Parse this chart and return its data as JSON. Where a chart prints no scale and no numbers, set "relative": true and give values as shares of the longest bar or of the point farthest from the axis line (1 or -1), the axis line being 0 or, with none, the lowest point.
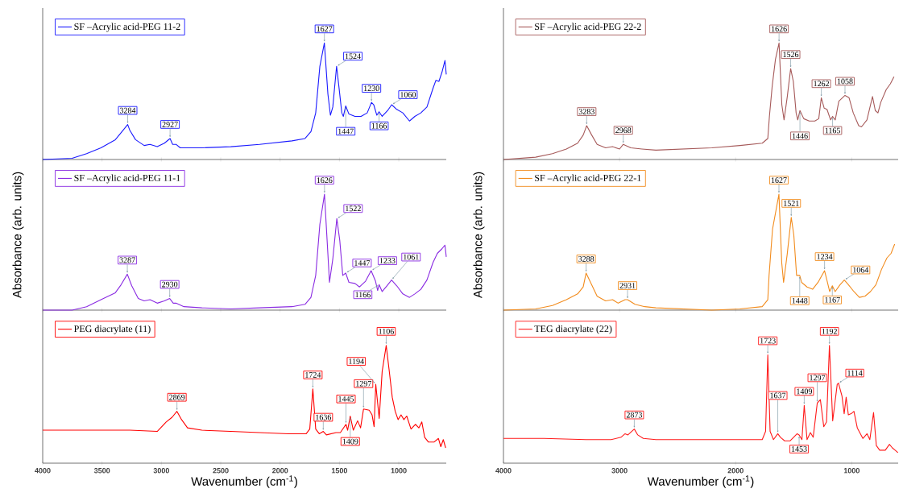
{
  "chart_data": [
    {
      "type": "line",
      "relative": true,
      "xlim": [
        4000,
        600
      ],
      "xticks": [
        4000,
        3500,
        3000,
        2500,
        2000,
        1500,
        1000
      ],
      "tick_labels": false,
      "legend": "top left",
      "series": [
        {
          "name": "SF –Acrylic acid-PEG 11-2",
          "color": "#1a1aff",
          "x": [
            4000,
            3752,
            3630,
            3509,
            3388,
            3339,
            3284,
            3266,
            3218,
            3145,
            3096,
            3035,
            2975,
            2927,
            2905,
            2877,
            2841,
            2659,
            2416,
            2173,
            1900,
            1790,
            1740,
            1700,
            1665,
            1627,
            1597,
            1576,
            1556,
            1524,
            1505,
            1480,
            1467,
            1447,
            1420,
            1369,
            1318,
            1266,
            1230,
            1211,
            1185,
            1166,
            1140,
            1094,
            1060,
            1017,
            966,
            910,
            865,
            814,
            763,
            712,
            687,
            662,
            636,
            611,
            600
          ],
          "values": [
            0,
            0.01,
            0.05,
            0.1,
            0.17,
            0.23,
            0.3,
            0.25,
            0.17,
            0.12,
            0.13,
            0.11,
            0.14,
            0.18,
            0.13,
            0.13,
            0.1,
            0.1,
            0.11,
            0.13,
            0.16,
            0.18,
            0.24,
            0.4,
            0.8,
            1.0,
            0.56,
            0.38,
            0.45,
            0.8,
            0.63,
            0.4,
            0.37,
            0.46,
            0.39,
            0.37,
            0.37,
            0.4,
            0.49,
            0.47,
            0.38,
            0.41,
            0.37,
            0.42,
            0.47,
            0.43,
            0.4,
            0.33,
            0.37,
            0.4,
            0.45,
            0.61,
            0.68,
            0.67,
            0.75,
            0.85,
            0.73
          ]
        }
      ],
      "annotations": [
        {
          "text": "3284",
          "x": 3284,
          "y": 0.3
        },
        {
          "text": "2927",
          "x": 2927,
          "y": 0.18
        },
        {
          "text": "1627",
          "x": 1627,
          "y": 1.0
        },
        {
          "text": "1524",
          "x": 1524,
          "y": 0.8
        },
        {
          "text": "1447",
          "x": 1447,
          "y": 0.46
        },
        {
          "text": "1230",
          "x": 1230,
          "y": 0.49
        },
        {
          "text": "1166",
          "x": 1166,
          "y": 0.41
        },
        {
          "text": "1060",
          "x": 1060,
          "y": 0.47
        }
      ]
    },
    {
      "type": "line",
      "relative": true,
      "xlim": [
        4000,
        600
      ],
      "xticks": [
        4000,
        3500,
        3000,
        2500,
        2000,
        1500,
        1000
      ],
      "tick_labels": false,
      "legend": "top left",
      "ylabel": "Absorbance (arb. units)",
      "series": [
        {
          "name": "SF –Acrylic acid-PEG 11-1",
          "color": "#8a2be2",
          "x": [
            4000,
            3752,
            3630,
            3509,
            3388,
            3339,
            3287,
            3250,
            3195,
            3145,
            3096,
            3035,
            2975,
            2930,
            2900,
            2877,
            2810,
            2659,
            2416,
            2173,
            1900,
            1790,
            1740,
            1700,
            1665,
            1626,
            1597,
            1584,
            1556,
            1522,
            1497,
            1472,
            1447,
            1420,
            1369,
            1331,
            1280,
            1233,
            1196,
            1178,
            1166,
            1140,
            1100,
            1061,
            1017,
            966,
            910,
            865,
            814,
            763,
            712,
            675,
            636,
            611,
            600
          ],
          "values": [
            0,
            0.0,
            0.03,
            0.09,
            0.15,
            0.22,
            0.31,
            0.21,
            0.1,
            0.08,
            0.09,
            0.06,
            0.08,
            0.1,
            0.06,
            0.06,
            0.03,
            0.02,
            0.01,
            0.02,
            0.03,
            0.05,
            0.11,
            0.3,
            0.74,
            1.0,
            0.48,
            0.24,
            0.44,
            0.79,
            0.6,
            0.3,
            0.32,
            0.24,
            0.23,
            0.2,
            0.25,
            0.34,
            0.25,
            0.17,
            0.22,
            0.16,
            0.21,
            0.26,
            0.21,
            0.14,
            0.11,
            0.14,
            0.18,
            0.26,
            0.41,
            0.49,
            0.53,
            0.56,
            0.46
          ]
        }
      ],
      "annotations": [
        {
          "text": "3287",
          "x": 3287,
          "y": 0.31
        },
        {
          "text": "2930",
          "x": 2930,
          "y": 0.1
        },
        {
          "text": "1626",
          "x": 1626,
          "y": 1.0
        },
        {
          "text": "1522",
          "x": 1522,
          "y": 0.79
        },
        {
          "text": "1447",
          "x": 1447,
          "y": 0.32
        },
        {
          "text": "1233",
          "x": 1233,
          "y": 0.34
        },
        {
          "text": "1166",
          "x": 1166,
          "y": 0.22
        },
        {
          "text": "1061",
          "x": 1061,
          "y": 0.26
        }
      ]
    },
    {
      "type": "line",
      "relative": true,
      "xlim": [
        4000,
        600
      ],
      "xticks": [
        4000,
        3500,
        3000,
        2500,
        2000,
        1500,
        1000
      ],
      "tick_labels": "x",
      "legend": "top left",
      "xlabel": "Wavenumber (cm$^{-1}$)",
      "series": [
        {
          "name": "PEG diacrylate (11)",
          "color": "#ff0000",
          "x": [
            4000,
            3630,
            3266,
            3035,
            2960,
            2910,
            2869,
            2830,
            2780,
            2659,
            2416,
            2173,
            1930,
            1780,
            1750,
            1724,
            1700,
            1670,
            1636,
            1610,
            1529,
            1492,
            1445,
            1431,
            1409,
            1383,
            1347,
            1322,
            1297,
            1249,
            1225,
            1208,
            1194,
            1165,
            1140,
            1106,
            1080,
            1055,
            1030,
            1006,
            981,
            957,
            933,
            897,
            860,
            831,
            806,
            782,
            751,
            702,
            666,
            646,
            625,
            605
          ],
          "values": [
            0.28,
            0.28,
            0.28,
            0.27,
            0.35,
            0.39,
            0.44,
            0.37,
            0.3,
            0.28,
            0.27,
            0.26,
            0.25,
            0.25,
            0.29,
            0.63,
            0.29,
            0.25,
            0.27,
            0.24,
            0.26,
            0.26,
            0.33,
            0.28,
            0.4,
            0.28,
            0.36,
            0.3,
            0.46,
            0.45,
            0.41,
            0.31,
            0.67,
            0.38,
            0.78,
            1.0,
            0.78,
            0.56,
            0.44,
            0.37,
            0.41,
            0.37,
            0.4,
            0.29,
            0.33,
            0.3,
            0.35,
            0.22,
            0.18,
            0.18,
            0.21,
            0.14,
            0.2,
            0.13
          ]
        }
      ],
      "annotations": [
        {
          "text": "2869",
          "x": 2869,
          "y": 0.44
        },
        {
          "text": "1724",
          "x": 1724,
          "y": 0.63
        },
        {
          "text": "1636",
          "x": 1636,
          "y": 0.27
        },
        {
          "text": "1445",
          "x": 1445,
          "y": 0.33
        },
        {
          "text": "1409",
          "x": 1409,
          "y": 0.4
        },
        {
          "text": "1297",
          "x": 1297,
          "y": 0.46
        },
        {
          "text": "1194",
          "x": 1194,
          "y": 0.67
        },
        {
          "text": "1106",
          "x": 1106,
          "y": 1.0
        }
      ]
    },
    {
      "type": "line",
      "relative": true,
      "xlim": [
        4000,
        600
      ],
      "xticks": [
        4000,
        3000,
        2000,
        1000
      ],
      "tick_labels": false,
      "legend": "top left",
      "series": [
        {
          "name": "SF –Acrylic acid-PEG 22-2",
          "color": "#a65a5a",
          "x": [
            4000,
            3723,
            3578,
            3458,
            3361,
            3313,
            3283,
            3240,
            3193,
            3120,
            3060,
            3000,
            2968,
            2903,
            2807,
            2687,
            2446,
            2205,
            1963,
            1771,
            1723,
            1709,
            1685,
            1657,
            1626,
            1602,
            1583,
            1555,
            1526,
            1503,
            1479,
            1465,
            1446,
            1413,
            1366,
            1318,
            1284,
            1262,
            1237,
            1213,
            1182,
            1165,
            1142,
            1111,
            1058,
            1023,
            987,
            940,
            916,
            869,
            821,
            797,
            774,
            750,
            703,
            667,
            636
          ],
          "values": [
            0,
            0.02,
            0.05,
            0.09,
            0.14,
            0.21,
            0.29,
            0.21,
            0.13,
            0.1,
            0.11,
            0.09,
            0.13,
            0.1,
            0.09,
            0.08,
            0.09,
            0.1,
            0.12,
            0.14,
            0.18,
            0.37,
            0.63,
            0.86,
            1.0,
            0.47,
            0.34,
            0.54,
            0.78,
            0.67,
            0.4,
            0.34,
            0.42,
            0.35,
            0.33,
            0.33,
            0.35,
            0.53,
            0.44,
            0.43,
            0.34,
            0.37,
            0.34,
            0.5,
            0.55,
            0.53,
            0.4,
            0.29,
            0.28,
            0.34,
            0.54,
            0.42,
            0.4,
            0.49,
            0.6,
            0.65,
            0.71
          ]
        }
      ],
      "annotations": [
        {
          "text": "3283",
          "x": 3283,
          "y": 0.29
        },
        {
          "text": "2968",
          "x": 2968,
          "y": 0.13
        },
        {
          "text": "1626",
          "x": 1626,
          "y": 1.0
        },
        {
          "text": "1526",
          "x": 1526,
          "y": 0.78
        },
        {
          "text": "1446",
          "x": 1446,
          "y": 0.42
        },
        {
          "text": "1262",
          "x": 1262,
          "y": 0.53
        },
        {
          "text": "1165",
          "x": 1165,
          "y": 0.37
        },
        {
          "text": "1058",
          "x": 1058,
          "y": 0.55
        }
      ]
    },
    {
      "type": "line",
      "relative": true,
      "xlim": [
        4000,
        600
      ],
      "xticks": [
        4000,
        3000,
        2000,
        1000
      ],
      "tick_labels": false,
      "legend": "top left",
      "ylabel": "Absorbance (arb. units)",
      "series": [
        {
          "name": "SF –Acrylic acid-PEG 22-1",
          "color": "#f28c1e",
          "x": [
            4000,
            3723,
            3578,
            3458,
            3361,
            3313,
            3288,
            3241,
            3193,
            3120,
            3060,
            3012,
            2952,
            2931,
            2867,
            2783,
            2687,
            2446,
            2205,
            1963,
            1771,
            1723,
            1712,
            1682,
            1627,
            1603,
            1587,
            1556,
            1521,
            1499,
            1475,
            1448,
            1432,
            1385,
            1337,
            1290,
            1234,
            1214,
            1190,
            1167,
            1143,
            1100,
            1064,
            1029,
            981,
            934,
            886,
            839,
            791,
            744,
            697,
            661,
            630
          ],
          "values": [
            0,
            0.01,
            0.04,
            0.09,
            0.14,
            0.2,
            0.32,
            0.22,
            0.12,
            0.08,
            0.09,
            0.06,
            0.09,
            0.09,
            0.05,
            0.03,
            0.02,
            0.01,
            0.0,
            0.01,
            0.03,
            0.09,
            0.3,
            0.7,
            1.0,
            0.41,
            0.24,
            0.48,
            0.8,
            0.65,
            0.3,
            0.3,
            0.24,
            0.2,
            0.18,
            0.24,
            0.34,
            0.26,
            0.16,
            0.21,
            0.16,
            0.22,
            0.26,
            0.22,
            0.16,
            0.11,
            0.12,
            0.16,
            0.22,
            0.35,
            0.45,
            0.49,
            0.57
          ]
        }
      ],
      "annotations": [
        {
          "text": "3288",
          "x": 3288,
          "y": 0.32
        },
        {
          "text": "2931",
          "x": 2931,
          "y": 0.09
        },
        {
          "text": "1627",
          "x": 1627,
          "y": 1.0
        },
        {
          "text": "1521",
          "x": 1521,
          "y": 0.8
        },
        {
          "text": "1448",
          "x": 1448,
          "y": 0.3
        },
        {
          "text": "1234",
          "x": 1234,
          "y": 0.34
        },
        {
          "text": "1167",
          "x": 1167,
          "y": 0.21
        },
        {
          "text": "1064",
          "x": 1064,
          "y": 0.26
        }
      ]
    },
    {
      "type": "line",
      "relative": true,
      "xlim": [
        4000,
        600
      ],
      "xticks": [
        4000,
        3000,
        2000,
        1000
      ],
      "tick_labels": "x",
      "legend": "top left",
      "xlabel": "Wavenumber (cm$^{-1}$)",
      "series": [
        {
          "name": "TEG diacrylate (22)",
          "color": "#ff1a1a",
          "x": [
            4000,
            3651,
            3289,
            3072,
            2988,
            2952,
            2928,
            2873,
            2843,
            2795,
            2687,
            2446,
            2205,
            1964,
            1771,
            1742,
            1723,
            1703,
            1674,
            1637,
            1614,
            1578,
            1530,
            1470,
            1453,
            1429,
            1409,
            1385,
            1356,
            1332,
            1297,
            1270,
            1241,
            1217,
            1192,
            1164,
            1125,
            1114,
            1084,
            1065,
            1048,
            1029,
            1005,
            981,
            952,
            904,
            868,
            844,
            812,
            788,
            759,
            711,
            675,
            650,
            626,
            602
          ],
          "values": [
            0.21,
            0.21,
            0.2,
            0.2,
            0.22,
            0.25,
            0.24,
            0.29,
            0.24,
            0.21,
            0.2,
            0.2,
            0.2,
            0.2,
            0.2,
            0.27,
            0.92,
            0.27,
            0.2,
            0.25,
            0.22,
            0.19,
            0.19,
            0.25,
            0.24,
            0.2,
            0.49,
            0.2,
            0.26,
            0.22,
            0.51,
            0.54,
            0.31,
            0.35,
            1.0,
            0.36,
            0.67,
            0.68,
            0.57,
            0.42,
            0.56,
            0.41,
            0.42,
            0.44,
            0.3,
            0.21,
            0.25,
            0.2,
            0.43,
            0.15,
            0.11,
            0.11,
            0.16,
            0.13,
            0.11,
            0.09
          ]
        }
      ],
      "annotations": [
        {
          "text": "2873",
          "x": 2873,
          "y": 0.29
        },
        {
          "text": "1723",
          "x": 1723,
          "y": 0.92
        },
        {
          "text": "1637",
          "x": 1637,
          "y": 0.25
        },
        {
          "text": "1453",
          "x": 1453,
          "y": 0.24
        },
        {
          "text": "1409",
          "x": 1409,
          "y": 0.49
        },
        {
          "text": "1297",
          "x": 1297,
          "y": 0.51
        },
        {
          "text": "1192",
          "x": 1192,
          "y": 1.0
        },
        {
          "text": "1114",
          "x": 1114,
          "y": 0.68
        }
      ]
    }
  ]
}
